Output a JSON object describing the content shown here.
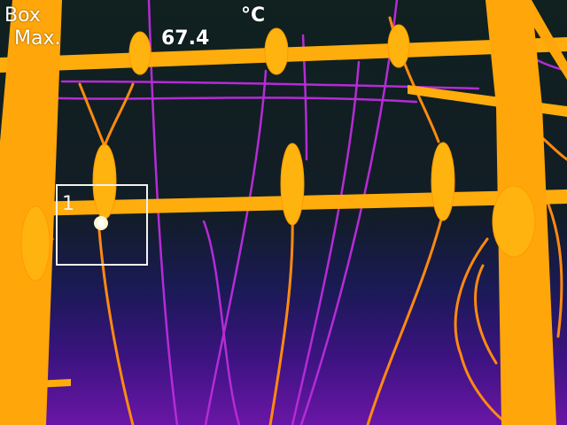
{
  "overlay": {
    "mode_label": "Box",
    "stat_label": "Max.",
    "unit": "°C",
    "max_value": "67.4"
  },
  "roi": {
    "id_label": "1",
    "max_temp_c": 67.4
  },
  "palette": {
    "hot": "#ffb000",
    "warm": "#ff8a00",
    "mid": "#c22fd0",
    "cool": "#5a1ea8",
    "background": "#10211f"
  }
}
